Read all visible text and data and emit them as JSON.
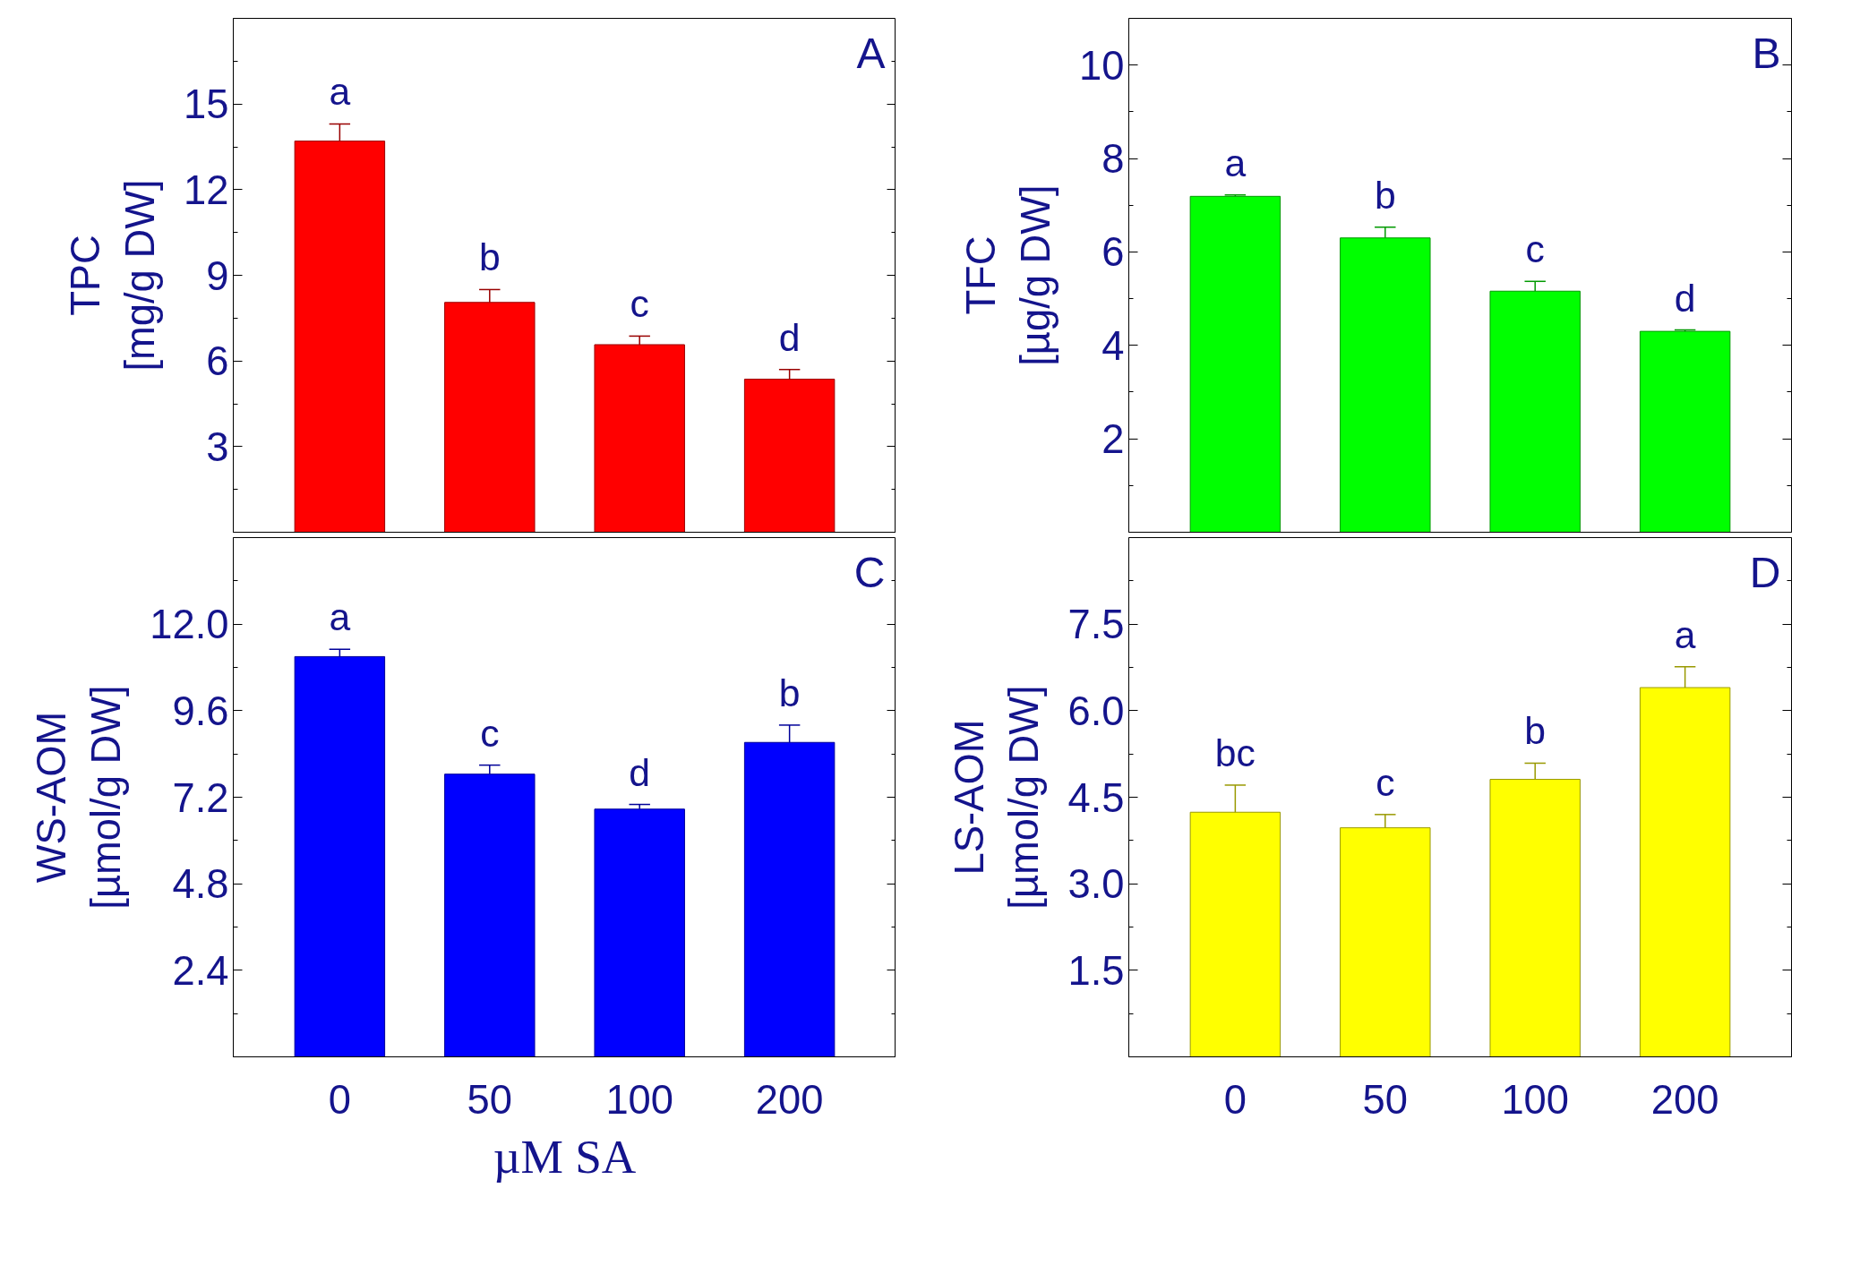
{
  "chart_data": [
    {
      "type": "bar",
      "ylabel": "TPC\n[mg/g DW]",
      "categories": [
        "0",
        "50",
        "100",
        "200"
      ],
      "tick_labels": "y",
      "ylim": [
        0,
        18
      ],
      "yticks": [
        3,
        6,
        9,
        12,
        15
      ],
      "series": [
        {
          "color": "#ff0000",
          "values": [
            13.7,
            8.05,
            6.57,
            5.36
          ],
          "errors": [
            [
              13.7,
              14.3
            ],
            [
              8.05,
              8.5
            ],
            [
              6.57,
              6.87
            ],
            [
              5.36,
              5.7
            ]
          ]
        }
      ],
      "annotations": [
        "A",
        {
          "text": "a",
          "x": "0",
          "y": 14.3
        },
        {
          "text": "b",
          "x": "50",
          "y": 8.5
        },
        {
          "text": "c",
          "x": "100",
          "y": 6.87
        },
        {
          "text": "d",
          "x": "200",
          "y": 5.7
        }
      ]
    },
    {
      "type": "bar",
      "ylabel": "TFC\n[µg/g DW]",
      "categories": [
        "0",
        "50",
        "100",
        "200"
      ],
      "tick_labels": "y",
      "ylim": [
        0,
        11
      ],
      "yticks": [
        2,
        4,
        6,
        8,
        10
      ],
      "series": [
        {
          "color": "#00ff00",
          "values": [
            7.19,
            6.3,
            5.16,
            4.3
          ],
          "errors": [
            [
              7.19,
              7.22
            ],
            [
              6.3,
              6.53
            ],
            [
              5.16,
              5.37
            ],
            [
              4.3,
              4.33
            ]
          ]
        }
      ],
      "annotations": [
        "B",
        {
          "text": "a",
          "x": "0",
          "y": 7.22
        },
        {
          "text": "b",
          "x": "50",
          "y": 6.53
        },
        {
          "text": "c",
          "x": "100",
          "y": 5.37
        },
        {
          "text": "d",
          "x": "200",
          "y": 4.33
        }
      ]
    },
    {
      "type": "bar",
      "ylabel": "WS-AOM\n[µmol/g DW]",
      "xlabel": "µM SA",
      "categories": [
        "0",
        "50",
        "100",
        "200"
      ],
      "ylim": [
        0,
        14.4
      ],
      "yticks": [
        2.4,
        4.8,
        7.2,
        9.6,
        {
          "value": 12.0,
          "label": "12.0"
        }
      ],
      "series": [
        {
          "color": "#0000ff",
          "values": [
            11.1,
            7.84,
            6.87,
            8.72
          ],
          "errors": [
            [
              11.1,
              11.3
            ],
            [
              7.84,
              8.09
            ],
            [
              6.87,
              7.0
            ],
            [
              8.72,
              9.2
            ]
          ]
        }
      ],
      "annotations": [
        "C",
        {
          "text": "a",
          "x": "0",
          "y": 11.3
        },
        {
          "text": "c",
          "x": "50",
          "y": 8.09
        },
        {
          "text": "d",
          "x": "100",
          "y": 7.0
        },
        {
          "text": "b",
          "x": "200",
          "y": 9.2
        }
      ]
    },
    {
      "type": "bar",
      "ylabel": "LS-AOM\n[µmol/g DW]",
      "categories": [
        "0",
        "50",
        "100",
        "200"
      ],
      "ylim": [
        0,
        9
      ],
      "yticks": [
        1.5,
        {
          "value": 3.0,
          "label": "3.0"
        },
        4.5,
        {
          "value": 6.0,
          "label": "6.0"
        },
        7.5
      ],
      "series": [
        {
          "color": "#ffff00",
          "values": [
            4.24,
            3.97,
            4.81,
            6.4
          ],
          "errors": [
            [
              4.24,
              4.71
            ],
            [
              3.97,
              4.2
            ],
            [
              4.81,
              5.09
            ],
            [
              6.4,
              6.76
            ]
          ]
        }
      ],
      "annotations": [
        "D",
        {
          "text": "bc",
          "x": "0",
          "y": 4.71
        },
        {
          "text": "c",
          "x": "50",
          "y": 4.2
        },
        {
          "text": "b",
          "x": "100",
          "y": 5.09
        },
        {
          "text": "a",
          "x": "200",
          "y": 6.76
        }
      ]
    }
  ]
}
